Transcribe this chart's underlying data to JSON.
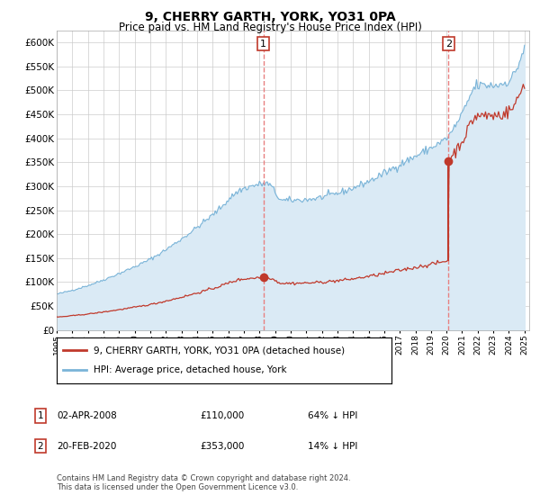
{
  "title": "9, CHERRY GARTH, YORK, YO31 0PA",
  "subtitle": "Price paid vs. HM Land Registry's House Price Index (HPI)",
  "ylim": [
    0,
    625000
  ],
  "yticks": [
    0,
    50000,
    100000,
    150000,
    200000,
    250000,
    300000,
    350000,
    400000,
    450000,
    500000,
    550000,
    600000
  ],
  "hpi_color": "#7ab4d8",
  "hpi_fill_color": "#daeaf5",
  "price_color": "#c0392b",
  "vline_color": "#e88080",
  "transaction1": {
    "date": "02-APR-2008",
    "price": 110000,
    "label": "64% ↓ HPI",
    "x_year": 2008.25
  },
  "transaction2": {
    "date": "20-FEB-2020",
    "price": 353000,
    "label": "14% ↓ HPI",
    "x_year": 2020.13
  },
  "legend_property": "9, CHERRY GARTH, YORK, YO31 0PA (detached house)",
  "legend_hpi": "HPI: Average price, detached house, York",
  "footer1": "Contains HM Land Registry data © Crown copyright and database right 2024.",
  "footer2": "This data is licensed under the Open Government Licence v3.0.",
  "annotation1_label": "1",
  "annotation2_label": "2",
  "xlim_start": 1995,
  "xlim_end": 2025.3
}
